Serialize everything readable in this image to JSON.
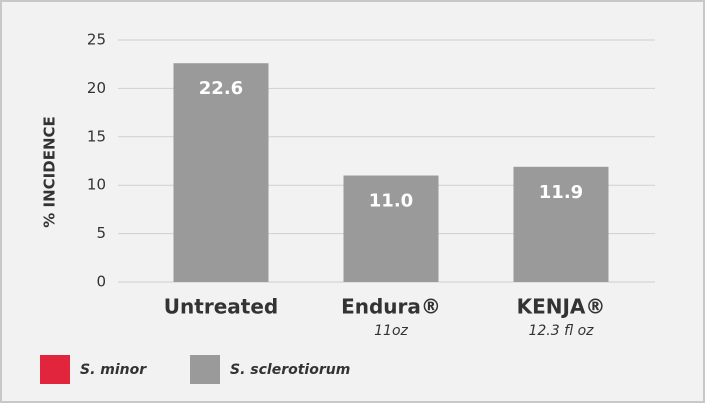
{
  "chart_data": {
    "type": "bar",
    "y_label": "% INCIDENCE",
    "categories": [
      "Untreated",
      "Endura®",
      "KENJA®"
    ],
    "category_notes": [
      null,
      "11oz",
      "12.3 fl oz"
    ],
    "series": [
      {
        "name": "S. minor",
        "color": "#e0253c",
        "values": [
          null,
          null,
          null
        ]
      },
      {
        "name": "S. sclerotiorum",
        "color": "#9a9a9a",
        "values": [
          22.6,
          11,
          11.9
        ],
        "value_labels": [
          "22.6",
          "11.0",
          "11.9"
        ]
      }
    ],
    "ylim": [
      0,
      25
    ],
    "yticks": [
      0,
      5,
      10,
      15,
      20,
      25
    ],
    "grid": true
  }
}
